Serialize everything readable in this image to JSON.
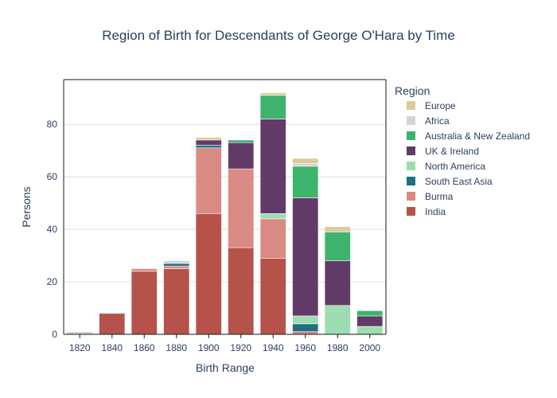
{
  "chart_data": {
    "type": "bar",
    "stacked": true,
    "title": "Region of Birth for Descendants of George O'Hara by Time",
    "xlabel": "Birth Range",
    "ylabel": "Persons",
    "categories": [
      "1820",
      "1840",
      "1860",
      "1880",
      "1900",
      "1920",
      "1940",
      "1960",
      "1980",
      "2000"
    ],
    "ylim": [
      0,
      97
    ],
    "yticks": [
      0,
      20,
      40,
      60,
      80
    ],
    "grid": true,
    "legend_title": "Region",
    "legend_position": "right",
    "series": [
      {
        "name": "India",
        "color": "#b5534a",
        "values": [
          0,
          8,
          24,
          25,
          46,
          33,
          29,
          0,
          0,
          0
        ]
      },
      {
        "name": "Burma",
        "color": "#d98a82",
        "values": [
          0,
          0,
          1,
          1,
          25,
          30,
          15,
          1,
          0,
          0
        ]
      },
      {
        "name": "South East Asia",
        "color": "#1f6f82",
        "values": [
          0,
          0,
          0,
          1,
          1,
          0,
          0,
          3,
          0,
          0
        ]
      },
      {
        "name": "North America",
        "color": "#9dddb1",
        "values": [
          0,
          0,
          0,
          0,
          0,
          0,
          2,
          3,
          11,
          3
        ]
      },
      {
        "name": "UK & Ireland",
        "color": "#613a68",
        "values": [
          0,
          0,
          0,
          0,
          2,
          10,
          36,
          45,
          17,
          4
        ]
      },
      {
        "name": "Australia & New Zealand",
        "color": "#3db36b",
        "values": [
          0,
          0,
          0,
          0,
          0,
          1,
          9,
          12,
          11,
          2
        ]
      },
      {
        "name": "Africa",
        "color": "#d3d3d3",
        "values": [
          1,
          0,
          0,
          1,
          0,
          0,
          0,
          1,
          0,
          0
        ]
      },
      {
        "name": "Europe",
        "color": "#d9cc9a",
        "values": [
          0,
          0,
          0,
          0,
          1,
          0,
          1,
          2,
          2,
          0
        ]
      }
    ],
    "legend_order": [
      "Europe",
      "Africa",
      "Australia & New Zealand",
      "UK & Ireland",
      "North America",
      "South East Asia",
      "Burma",
      "India"
    ]
  }
}
